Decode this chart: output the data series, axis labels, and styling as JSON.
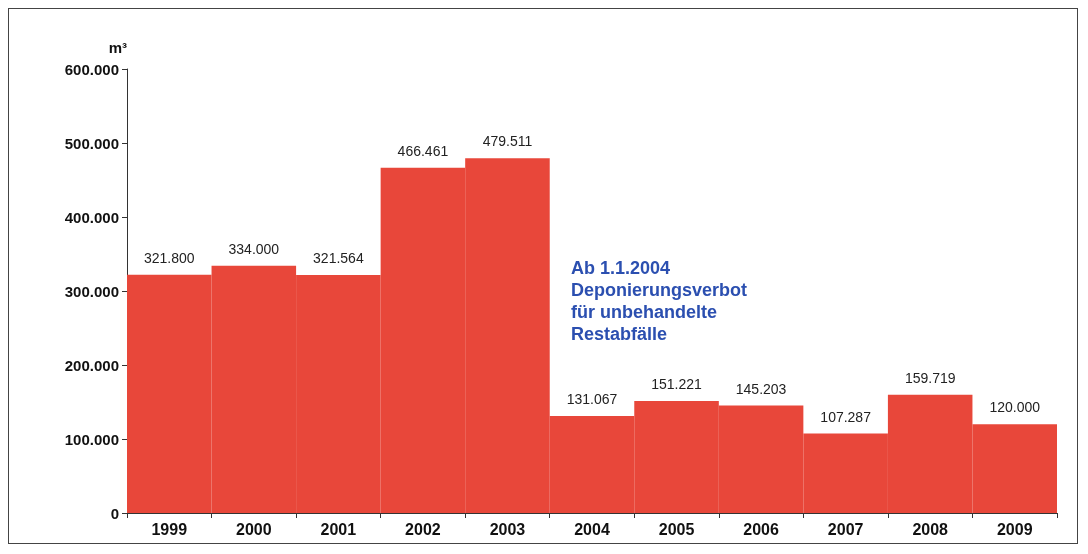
{
  "chart_data": {
    "type": "bar",
    "ylabel": "m³",
    "categories": [
      "1999",
      "2000",
      "2001",
      "2002",
      "2003",
      "2004",
      "2005",
      "2006",
      "2007",
      "2008",
      "2009"
    ],
    "values": [
      321800,
      334000,
      321564,
      466461,
      479511,
      131067,
      151221,
      145203,
      107287,
      159719,
      120000
    ],
    "value_labels": [
      "321.800",
      "334.000",
      "321.564",
      "466.461",
      "479.511",
      "131.067",
      "151.221",
      "145.203",
      "107.287",
      "159.719",
      "120.000"
    ],
    "color": "#e8473a",
    "ylim": [
      0,
      600000
    ],
    "yticks": [
      0,
      {
        "value": 100000,
        "label": "100.000"
      },
      {
        "value": 200000,
        "label": "200.000"
      },
      {
        "value": 300000,
        "label": "300.000"
      },
      {
        "value": 400000,
        "label": "400.000"
      },
      {
        "value": 500000,
        "label": "500.000"
      },
      {
        "value": 600000,
        "label": "600.000"
      }
    ],
    "annotations": [
      "Ab 1.1.2004\nDeponierungsverbot\nfür unbehandelte\nRestabfälle"
    ],
    "grid": false
  }
}
